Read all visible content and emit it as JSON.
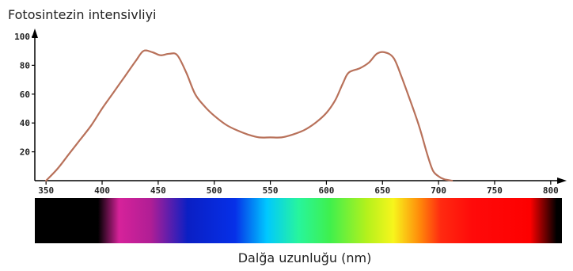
{
  "chart_data": {
    "type": "line",
    "title": "Fotosintezin intensivliyi",
    "xlabel": "Dalğa uzunluğu (nm)",
    "ylabel": "",
    "xlim": [
      340,
      810
    ],
    "ylim": [
      0,
      100
    ],
    "x_ticks": [
      350,
      400,
      450,
      500,
      550,
      600,
      650,
      700,
      750,
      800
    ],
    "y_ticks": [
      20,
      40,
      60,
      80,
      100
    ],
    "grid": false,
    "legend": "none",
    "line_color": "#b8715a",
    "series": [
      {
        "x": [
          350,
          360,
          370,
          380,
          390,
          400,
          410,
          420,
          430,
          437,
          445,
          452,
          460,
          467,
          475,
          483,
          492,
          500,
          510,
          520,
          530,
          540,
          550,
          560,
          570,
          580,
          590,
          600,
          608,
          615,
          620,
          630,
          638,
          645,
          652,
          660,
          667,
          675,
          683,
          690,
          695,
          700,
          705,
          712
        ],
        "y": [
          0,
          8,
          18,
          28,
          38,
          50,
          61,
          72,
          83,
          90,
          89,
          87,
          88,
          87,
          75,
          60,
          51,
          45,
          39,
          35,
          32,
          30,
          30,
          30,
          32,
          35,
          40,
          47,
          56,
          68,
          75,
          78,
          82,
          88,
          89,
          85,
          72,
          55,
          37,
          18,
          7,
          3,
          1,
          0
        ]
      }
    ],
    "spectrum_bar": {
      "colors": [
        "#000000",
        "#000000",
        "#d6229a",
        "#b01e95",
        "#0a1fc4",
        "#0630e8",
        "#00c8ff",
        "#27f59d",
        "#3ff04d",
        "#b4f11c",
        "#f7f51c",
        "#ff8a0a",
        "#ff2a10",
        "#ff0a0a",
        "#fd0000",
        "#000000",
        "#000000"
      ],
      "stops": [
        0,
        0.12,
        0.16,
        0.22,
        0.29,
        0.38,
        0.44,
        0.5,
        0.56,
        0.63,
        0.68,
        0.73,
        0.77,
        0.83,
        0.94,
        0.99,
        1
      ]
    }
  }
}
